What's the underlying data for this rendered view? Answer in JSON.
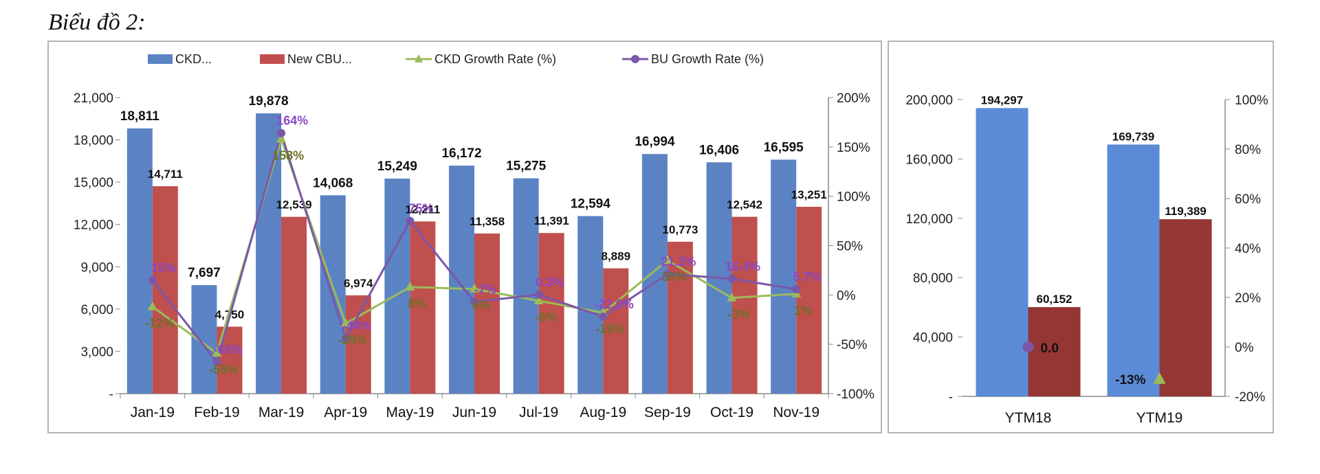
{
  "title": "Biểu đồ 2:",
  "colors": {
    "ckd_bar": "#5b83c4",
    "cbu_bar": "#c0504d",
    "ckd_line": "#9bbb59",
    "bu_line": "#7b57a8",
    "ytm_blue": "#5b8bd6",
    "ytm_red": "#943634"
  },
  "chart_data": [
    {
      "type": "bar",
      "categories": [
        "Jan-19",
        "Feb-19",
        "Mar-19",
        "Apr-19",
        "May-19",
        "Jun-19",
        "Jul-19",
        "Aug-19",
        "Sep-19",
        "Oct-19",
        "Nov-19"
      ],
      "series": [
        {
          "name": "CKD...",
          "kind": "bar",
          "axis": "left",
          "values": [
            18811,
            7697,
            19878,
            14068,
            15249,
            16172,
            15275,
            12594,
            16994,
            16406,
            16595
          ],
          "labels": [
            "18,811",
            "7,697",
            "19,878",
            "14,068",
            "15,249",
            "16,172",
            "15,275",
            "12,594",
            "16,994",
            "16,406",
            "16,595"
          ]
        },
        {
          "name": "New CBU...",
          "kind": "bar",
          "axis": "left",
          "values": [
            14711,
            4750,
            12539,
            6974,
            12211,
            11358,
            11391,
            8889,
            10773,
            12542,
            13251
          ],
          "labels": [
            "14,711",
            "4,750",
            "12,539",
            "6,974",
            "12,211",
            "11,358",
            "11,391",
            "8,889",
            "10,773",
            "12,542",
            "13,251"
          ]
        },
        {
          "name": "CKD Growth Rate (%)",
          "kind": "line",
          "axis": "right",
          "values": [
            -12,
            -59,
            158,
            -29,
            8,
            6,
            -6,
            -18,
            35,
            -3,
            1
          ],
          "labels": [
            "-12%",
            "-59%",
            "158%",
            "-29%",
            "8%",
            "6%",
            "-6%",
            "-18%",
            "35%",
            "-3%",
            "1%"
          ]
        },
        {
          "name": "BU Growth Rate (%)",
          "kind": "line",
          "axis": "right",
          "values": [
            15,
            -68,
            164,
            -44,
            75,
            -7,
            0.3,
            -22,
            21.2,
            16.4,
            5.7
          ],
          "labels": [
            "15%",
            "-68%",
            "164%",
            "-44%",
            "75%",
            "-7%",
            "0.3%",
            "-22.0%",
            "21.2%",
            "16.4%",
            "5.7%"
          ]
        }
      ],
      "y_left": {
        "min": 0,
        "max": 21000,
        "ticks": [
          "-",
          "3,000",
          "6,000",
          "9,000",
          "12,000",
          "15,000",
          "18,000",
          "21,000"
        ]
      },
      "y_right": {
        "min": -100,
        "max": 200,
        "ticks": [
          "-100%",
          "-50%",
          "0%",
          "50%",
          "100%",
          "150%",
          "200%"
        ]
      },
      "legend_position": "top"
    },
    {
      "type": "bar",
      "categories": [
        "YTM18",
        "YTM19"
      ],
      "series": [
        {
          "name": "CKD",
          "kind": "bar",
          "axis": "left",
          "values": [
            194297,
            169739
          ],
          "labels": [
            "194,297",
            "169,739"
          ]
        },
        {
          "name": "CBU",
          "kind": "bar",
          "axis": "left",
          "values": [
            60152,
            119389
          ],
          "labels": [
            "60,152",
            "119,389"
          ]
        },
        {
          "name": "Growth",
          "kind": "marker",
          "axis": "right",
          "values": [
            0,
            -13
          ],
          "labels": [
            "0.0",
            "-13%"
          ]
        }
      ],
      "y_left": {
        "min": 0,
        "max": 200000,
        "ticks": [
          "-",
          "40,000",
          "80,000",
          "120,000",
          "160,000",
          "200,000"
        ]
      },
      "y_right": {
        "min": -20,
        "max": 100,
        "ticks": [
          "-20%",
          "0%",
          "20%",
          "40%",
          "60%",
          "80%",
          "100%"
        ]
      }
    }
  ]
}
